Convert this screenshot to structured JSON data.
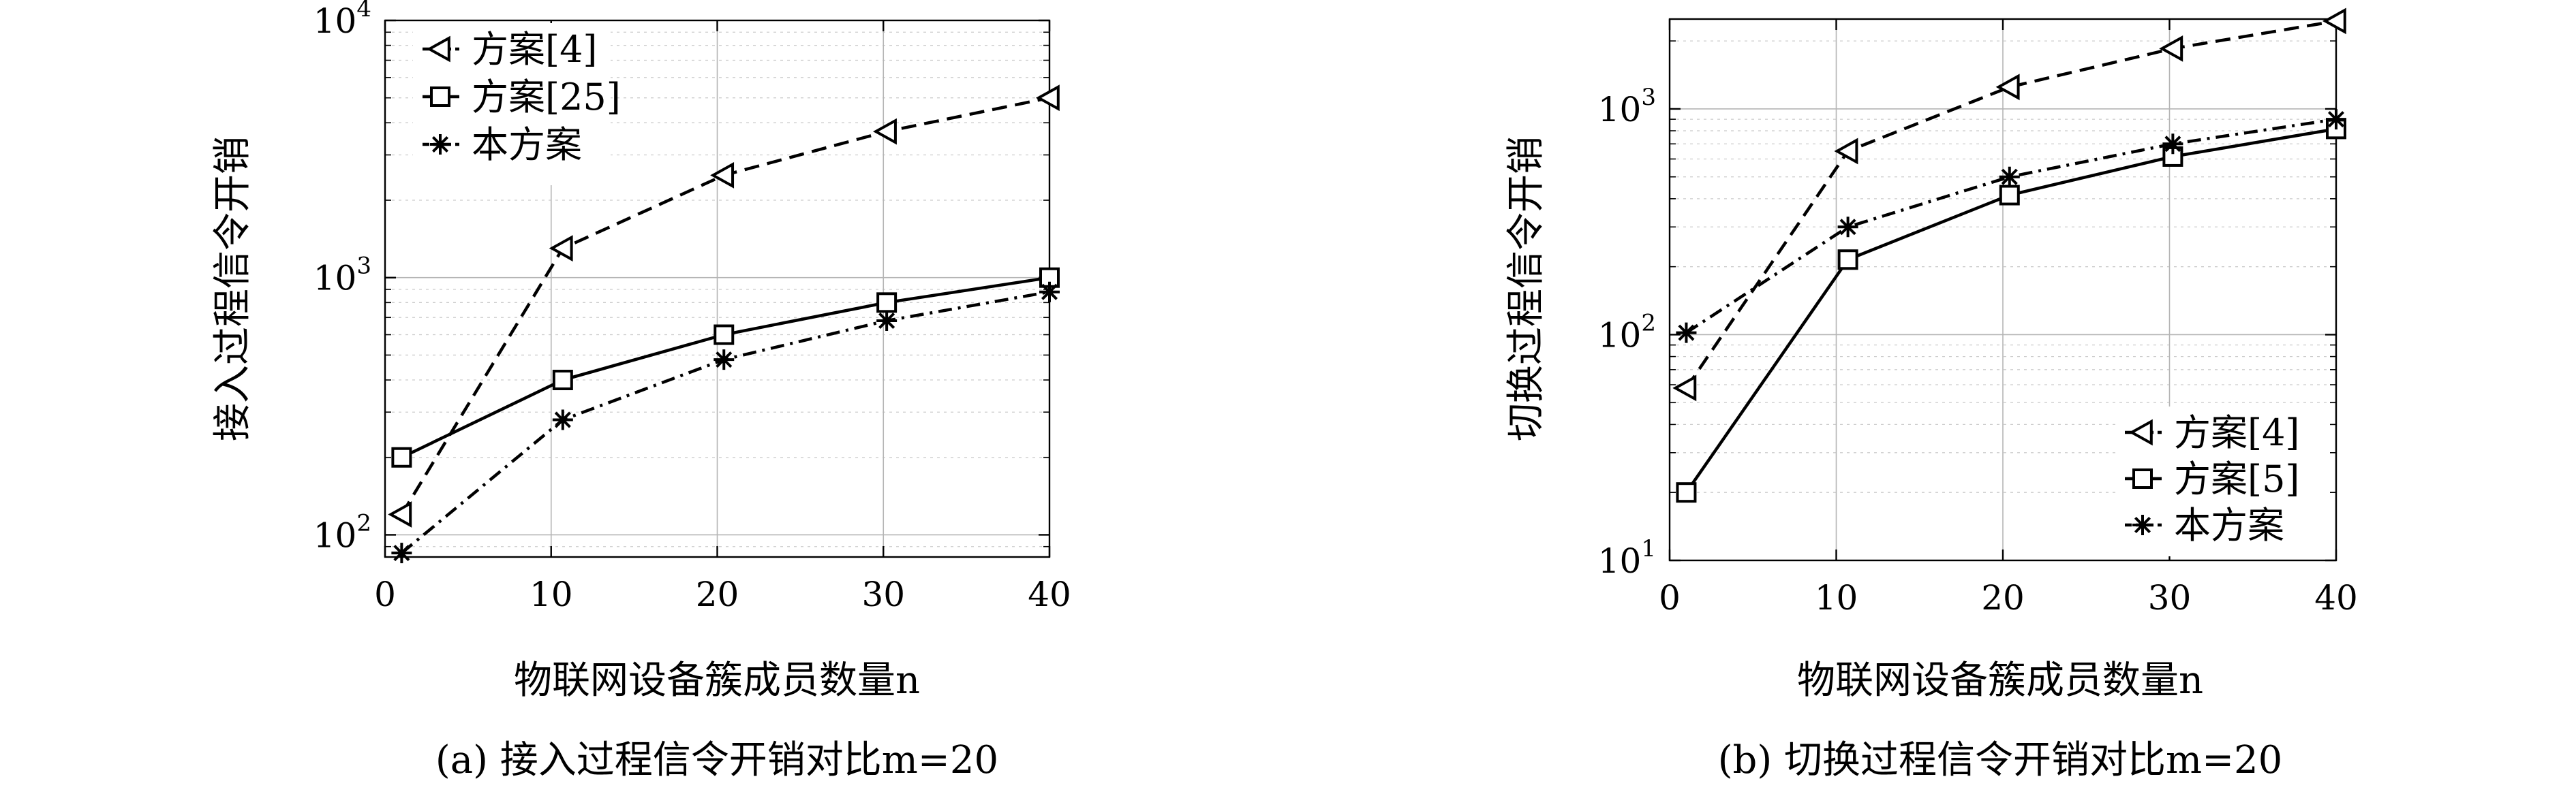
{
  "chart_data": [
    {
      "type": "line",
      "caption": "(a) 接入过程信令开销对比m=20",
      "xlabel": "物联网设备簇成员数量n",
      "ylabel": "接入过程信令开销",
      "x_ticks": [
        "0",
        "10",
        "20",
        "30",
        "40"
      ],
      "y_tick_bases": [
        "10",
        "10",
        "10"
      ],
      "y_tick_exponents": [
        "2",
        "3",
        "4"
      ],
      "xlim": [
        0,
        40
      ],
      "ylim": [
        82,
        10000
      ],
      "y_scale": "log",
      "grid": true,
      "legend_position": "top-left",
      "series": [
        {
          "name": "方案[4]",
          "marker": "triangle-left",
          "line": "dashed",
          "x": [
            1,
            10.7,
            20.4,
            30.2,
            40
          ],
          "y": [
            120,
            1300,
            2500,
            3700,
            5000
          ]
        },
        {
          "name": "方案[25]",
          "marker": "square",
          "line": "solid",
          "x": [
            1,
            10.7,
            20.4,
            30.2,
            40
          ],
          "y": [
            200,
            400,
            600,
            800,
            1000
          ]
        },
        {
          "name": "本方案",
          "marker": "star",
          "line": "dashdot",
          "x": [
            1,
            10.7,
            20.4,
            30.2,
            40
          ],
          "y": [
            85,
            280,
            480,
            680,
            880
          ]
        }
      ]
    },
    {
      "type": "line",
      "caption": "(b) 切换过程信令开销对比m=20",
      "xlabel": "物联网设备簇成员数量n",
      "ylabel": "切换过程信令开销",
      "x_ticks": [
        "0",
        "10",
        "20",
        "30",
        "40"
      ],
      "y_tick_bases": [
        "10",
        "10",
        "10"
      ],
      "y_tick_exponents": [
        "1",
        "2",
        "3"
      ],
      "xlim": [
        0,
        40
      ],
      "ylim": [
        10,
        2500
      ],
      "y_scale": "log",
      "grid": true,
      "legend_position": "bottom-right",
      "series": [
        {
          "name": "方案[4]",
          "marker": "triangle-left",
          "line": "dashed",
          "x": [
            1,
            10.7,
            20.4,
            30.2,
            40
          ],
          "y": [
            58,
            650,
            1250,
            1850,
            2450
          ]
        },
        {
          "name": "方案[5]",
          "marker": "square",
          "line": "solid",
          "x": [
            1,
            10.7,
            20.4,
            30.2,
            40
          ],
          "y": [
            20,
            215,
            415,
            615,
            815
          ]
        },
        {
          "name": "本方案",
          "marker": "star",
          "line": "dashdot",
          "x": [
            1,
            10.7,
            20.4,
            30.2,
            40
          ],
          "y": [
            102,
            300,
            500,
            700,
            900
          ]
        }
      ]
    }
  ]
}
